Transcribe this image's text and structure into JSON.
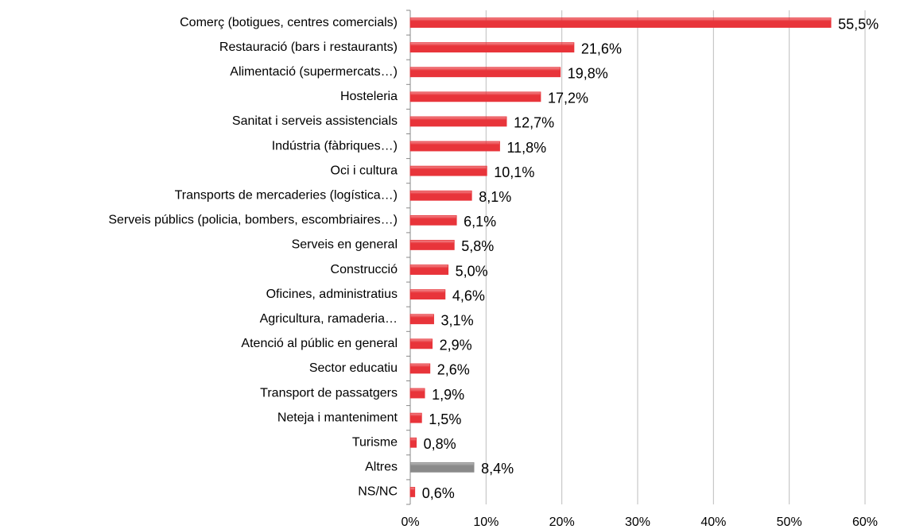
{
  "chart_data": {
    "type": "bar",
    "orientation": "horizontal",
    "categories": [
      "Comerç (botigues, centres comercials)",
      "Restauració (bars i restaurants)",
      "Alimentació (supermercats…)",
      "Hosteleria",
      "Sanitat i serveis assistencials",
      "Indústria (fàbriques…)",
      "Oci i cultura",
      "Transports de mercaderies (logística…)",
      "Serveis públics (policia, bombers, escombriaires…)",
      "Serveis en general",
      "Construcció",
      "Oficines, administratius",
      "Agricultura, ramaderia…",
      "Atenció al públic en general",
      "Sector educatiu",
      "Transport de passatgers",
      "Neteja i manteniment",
      "Turisme",
      "Altres",
      "NS/NC"
    ],
    "values": [
      55.5,
      21.6,
      19.8,
      17.2,
      12.7,
      11.8,
      10.1,
      8.1,
      6.1,
      5.8,
      5.0,
      4.6,
      3.1,
      2.9,
      2.6,
      1.9,
      1.5,
      0.8,
      8.4,
      0.6
    ],
    "value_labels": [
      "55,5%",
      "21,6%",
      "19,8%",
      "17,2%",
      "12,7%",
      "11,8%",
      "10,1%",
      "8,1%",
      "6,1%",
      "5,8%",
      "5,0%",
      "4,6%",
      "3,1%",
      "2,9%",
      "2,6%",
      "1,9%",
      "1,5%",
      "0,8%",
      "8,4%",
      "0,6%"
    ],
    "colors": [
      "#e8343a",
      "#e8343a",
      "#e8343a",
      "#e8343a",
      "#e8343a",
      "#e8343a",
      "#e8343a",
      "#e8343a",
      "#e8343a",
      "#e8343a",
      "#e8343a",
      "#e8343a",
      "#e8343a",
      "#e8343a",
      "#e8343a",
      "#e8343a",
      "#e8343a",
      "#e8343a",
      "#8a8a8a",
      "#e8343a"
    ],
    "xlim": [
      0,
      60
    ],
    "xticks": [
      {
        "value": 0,
        "label": "0%"
      },
      {
        "value": 10,
        "label": "10%"
      },
      {
        "value": 20,
        "label": "20%"
      },
      {
        "value": 30,
        "label": "30%"
      },
      {
        "value": 40,
        "label": "40%"
      },
      {
        "value": 50,
        "label": "50%"
      },
      {
        "value": 60,
        "label": "60%"
      }
    ],
    "grid": true
  }
}
